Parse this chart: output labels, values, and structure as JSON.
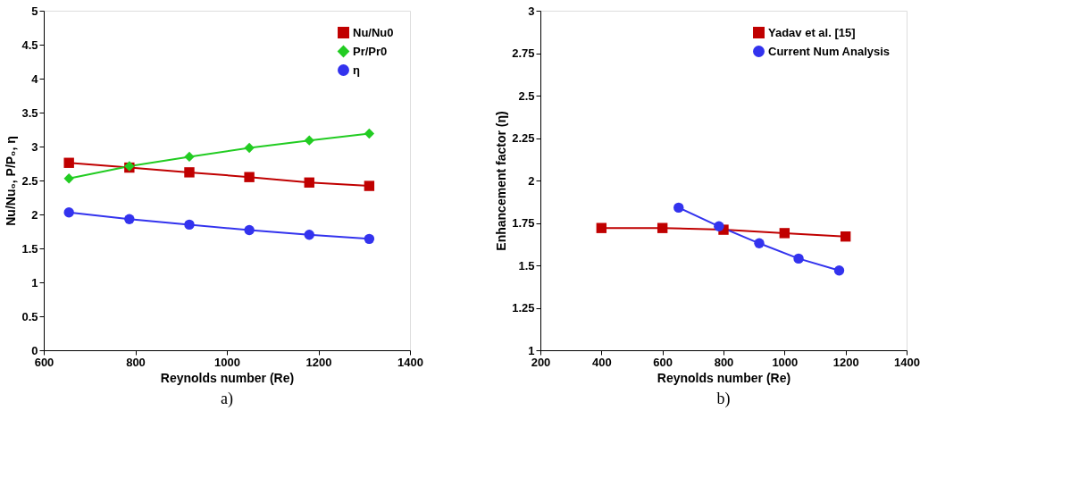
{
  "chart_data": [
    {
      "type": "line",
      "xlabel": "Reynolds number (Re)",
      "ylabel": "Nu/Nu₀, P/P₀, η",
      "annotations": [
        "a)"
      ],
      "xlim": [
        600,
        1400
      ],
      "xticks": [
        600,
        800,
        1000,
        1200,
        1400
      ],
      "ylim": [
        0,
        5
      ],
      "yticks": [
        0,
        0.5,
        1,
        1.5,
        2,
        2.5,
        3,
        3.5,
        4,
        4.5,
        5
      ],
      "grid": false,
      "legend": "top right",
      "line_style": "solid",
      "series": [
        {
          "name": "Nu/Nu0",
          "color": "#c00000",
          "marker": "square",
          "x": [
            655,
            787,
            918,
            1049,
            1180,
            1311
          ],
          "values": [
            2.76,
            2.69,
            2.62,
            2.55,
            2.47,
            2.42
          ]
        },
        {
          "name": "Pr/Pr0",
          "color": "#22cc22",
          "marker": "diamond",
          "x": [
            655,
            787,
            918,
            1049,
            1180,
            1311
          ],
          "values": [
            2.53,
            2.71,
            2.85,
            2.98,
            3.09,
            3.19
          ]
        },
        {
          "name": "η",
          "color": "#3333ee",
          "marker": "circle",
          "x": [
            655,
            787,
            918,
            1049,
            1180,
            1311
          ],
          "values": [
            2.03,
            1.93,
            1.85,
            1.77,
            1.7,
            1.64
          ]
        }
      ]
    },
    {
      "type": "line",
      "xlabel": "Reynolds number (Re)",
      "ylabel": "Enhancement factor (η)",
      "annotations": [
        "b)"
      ],
      "xlim": [
        200,
        1400
      ],
      "xticks": [
        200,
        400,
        600,
        800,
        1000,
        1200,
        1400
      ],
      "ylim": [
        1,
        3
      ],
      "yticks": [
        1,
        1.25,
        1.5,
        1.75,
        2,
        2.25,
        2.5,
        2.75,
        3
      ],
      "grid": false,
      "legend": "top right",
      "line_style": "solid",
      "series": [
        {
          "name": "Yadav et al. [15]",
          "color": "#c00000",
          "marker": "square",
          "x": [
            400,
            600,
            800,
            1000,
            1200
          ],
          "values": [
            1.72,
            1.72,
            1.71,
            1.69,
            1.67
          ]
        },
        {
          "name": "Current Num Analysis",
          "color": "#3333ee",
          "marker": "circle",
          "x": [
            653,
            785,
            917,
            1046,
            1179
          ],
          "values": [
            1.84,
            1.73,
            1.63,
            1.54,
            1.47
          ]
        }
      ]
    }
  ]
}
